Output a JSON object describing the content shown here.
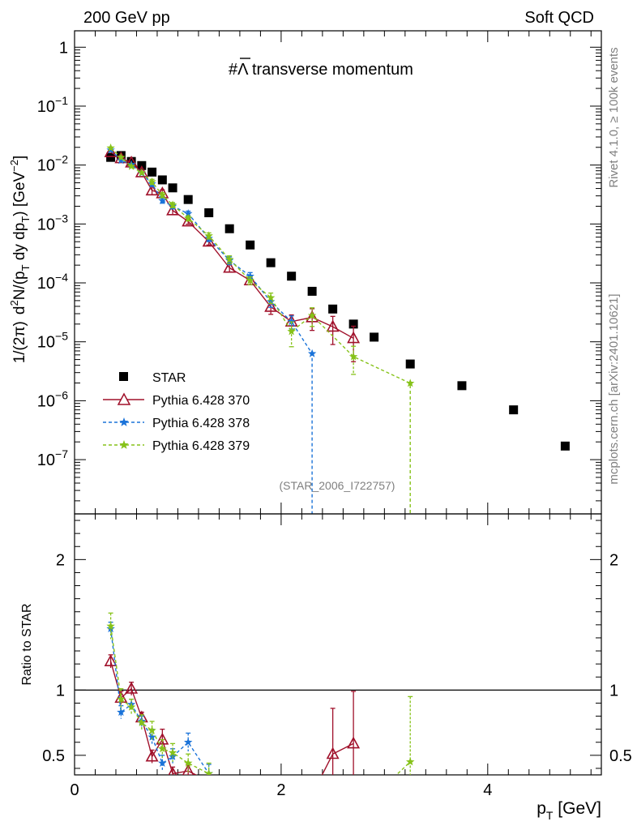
{
  "header": {
    "left": "200 GeV pp",
    "right": "Soft QCD"
  },
  "side_text": {
    "rivet": "Rivet 4.1.0, ≥ 100k events",
    "mcplots": "mcplots.cern.ch [arXiv:2401.10621]"
  },
  "chart_data": [
    {
      "type": "scatter",
      "panel": "main",
      "title": "#Λ̅ transverse momentum",
      "title_prefix": "#",
      "title_symbol": "Λ",
      "title_suffix": " transverse momentum",
      "ylabel": "1/(2π)  d²N/(p_T dy dp_T) [GeV⁻²]",
      "ylabel_parts": {
        "a": "1/(2π)",
        "b": "d",
        "b_sup": "2",
        "c": "N/(p",
        "c_sub": "T",
        "d": " dy dp",
        "d_sub": "T",
        "e": ") [GeV",
        "e_sup": "−2",
        "f": "]"
      },
      "xlabel": "p_T [GeV]",
      "xlabel_parts": {
        "a": "p",
        "a_sub": "T",
        "b": " [GeV]"
      },
      "yscale": "log",
      "xlim": [
        0,
        5.1
      ],
      "ylim": [
        1.2e-08,
        1.9
      ],
      "y_ticks": [
        {
          "base": "1",
          "exp": ""
        },
        {
          "base": "10",
          "exp": "−1"
        },
        {
          "base": "10",
          "exp": "−2"
        },
        {
          "base": "10",
          "exp": "−3"
        },
        {
          "base": "10",
          "exp": "−4"
        },
        {
          "base": "10",
          "exp": "−5"
        },
        {
          "base": "10",
          "exp": "−6"
        },
        {
          "base": "10",
          "exp": "−7"
        }
      ],
      "watermark": "(STAR_2006_I722757)",
      "legend_position": "lower-left",
      "series": [
        {
          "name": "STAR",
          "color": "#000000",
          "marker": "square",
          "x": [
            0.35,
            0.45,
            0.55,
            0.65,
            0.75,
            0.85,
            0.95,
            1.1,
            1.3,
            1.5,
            1.7,
            1.9,
            2.1,
            2.3,
            2.5,
            2.7,
            2.9,
            3.25,
            3.75,
            4.25,
            4.75
          ],
          "y": [
            0.0135,
            0.0145,
            0.0115,
            0.0098,
            0.0076,
            0.0056,
            0.0041,
            0.0026,
            0.00155,
            0.00083,
            0.00044,
            0.00022,
            0.00013,
            7.2e-05,
            3.6e-05,
            2e-05,
            1.2e-05,
            4.2e-06,
            1.8e-06,
            7e-07,
            1.7e-07
          ]
        },
        {
          "name": "Pythia 6.428 370",
          "color": "#a0102a",
          "marker": "triangle-open",
          "line": "solid",
          "x": [
            0.35,
            0.45,
            0.55,
            0.65,
            0.75,
            0.85,
            0.95,
            1.1,
            1.3,
            1.5,
            1.7,
            1.9,
            2.1,
            2.3,
            2.5,
            2.7
          ],
          "y": [
            0.0165,
            0.013,
            0.011,
            0.0075,
            0.0037,
            0.0033,
            0.0017,
            0.0011,
            0.0005,
            0.00018,
            0.00011,
            3.9e-05,
            2.2e-05,
            2.6e-05,
            1.8e-05,
            1.15e-05
          ],
          "err": [
            0.0,
            0.0,
            0.0,
            0.0,
            0.15,
            0.15,
            0.15,
            0.1,
            0.12,
            0.15,
            0.15,
            0.25,
            0.3,
            0.4,
            0.5,
            0.6
          ]
        },
        {
          "name": "Pythia 6.428 378",
          "color": "#1a73d9",
          "marker": "star",
          "line": "dashed",
          "x": [
            0.35,
            0.45,
            0.55,
            0.65,
            0.75,
            0.85,
            0.95,
            1.1,
            1.3,
            1.5,
            1.7,
            1.9,
            2.1,
            2.3
          ],
          "y": [
            0.018,
            0.012,
            0.0102,
            0.0073,
            0.0048,
            0.0025,
            0.002,
            0.0015,
            0.00057,
            0.00024,
            0.00013,
            4.8e-05,
            2.2e-05,
            6.3e-06
          ],
          "err": [
            0.0,
            0.0,
            0.0,
            0.0,
            0.1,
            0.1,
            0.1,
            0.1,
            0.12,
            0.15,
            0.15,
            0.2,
            0.25,
            0.0
          ]
        },
        {
          "name": "Pythia 6.428 379",
          "color": "#86c219",
          "marker": "star",
          "line": "dashed",
          "x": [
            0.35,
            0.45,
            0.55,
            0.65,
            0.75,
            0.85,
            0.95,
            1.1,
            1.3,
            1.5,
            1.7,
            1.9,
            2.1,
            2.3,
            2.7,
            3.25
          ],
          "y": [
            0.0195,
            0.0135,
            0.0095,
            0.0074,
            0.0052,
            0.0031,
            0.0021,
            0.00125,
            0.00063,
            0.00025,
            0.00011,
            5.6e-05,
            1.5e-05,
            2.8e-05,
            5.6e-06,
            1.98e-06
          ],
          "err": [
            0.0,
            0.0,
            0.0,
            0.0,
            0.1,
            0.1,
            0.1,
            0.1,
            0.12,
            0.15,
            0.15,
            0.2,
            0.45,
            0.35,
            0.5,
            0.0
          ]
        }
      ]
    },
    {
      "type": "scatter",
      "panel": "ratio",
      "ylabel": "Ratio to STAR",
      "xlabel": "p_T [GeV]",
      "xlim": [
        0,
        5.1
      ],
      "ylim": [
        0.35,
        2.35
      ],
      "y_ticks": [
        "0.5",
        "1",
        "2"
      ],
      "x_ticks": [
        "0",
        "2",
        "4"
      ],
      "reference_line": 1,
      "series": [
        {
          "name": "Pythia 6.428 370",
          "color": "#a0102a",
          "x": [
            0.35,
            0.45,
            0.55,
            0.65,
            0.75,
            0.85,
            0.95,
            1.1,
            1.3,
            2.5,
            2.7
          ],
          "y": [
            1.22,
            0.94,
            1.01,
            0.79,
            0.49,
            0.62,
            0.36,
            0.38,
            0.3,
            0.51,
            0.59
          ],
          "err": [
            0.05,
            0.05,
            0.05,
            0.04,
            0.05,
            0.08,
            0.05,
            0.05,
            0.05,
            0.35,
            0.4
          ],
          "segments": [
            [
              0,
              8
            ],
            [
              9,
              10
            ]
          ]
        },
        {
          "name": "Pythia 6.428 378",
          "color": "#1a73d9",
          "x": [
            0.35,
            0.45,
            0.55,
            0.65,
            0.75,
            0.85,
            0.95,
            1.1,
            1.3
          ],
          "y": [
            1.47,
            0.83,
            0.89,
            0.76,
            0.64,
            0.44,
            0.49,
            0.6,
            0.36
          ],
          "err": [
            0.05,
            0.05,
            0.04,
            0.04,
            0.06,
            0.06,
            0.06,
            0.07,
            0.07
          ],
          "segments": [
            [
              0,
              8
            ]
          ]
        },
        {
          "name": "Pythia 6.428 379",
          "color": "#86c219",
          "x": [
            0.35,
            0.45,
            0.55,
            0.65,
            0.75,
            0.85,
            0.95,
            1.1,
            1.3,
            3.25
          ],
          "y": [
            1.49,
            0.93,
            0.87,
            0.75,
            0.69,
            0.55,
            0.52,
            0.44,
            0.36,
            0.45
          ],
          "err": [
            0.1,
            0.08,
            0.06,
            0.06,
            0.07,
            0.07,
            0.07,
            0.07,
            0.08,
            0.5
          ],
          "segments": [
            [
              0,
              8
            ],
            [
              9,
              9
            ]
          ]
        }
      ]
    }
  ]
}
